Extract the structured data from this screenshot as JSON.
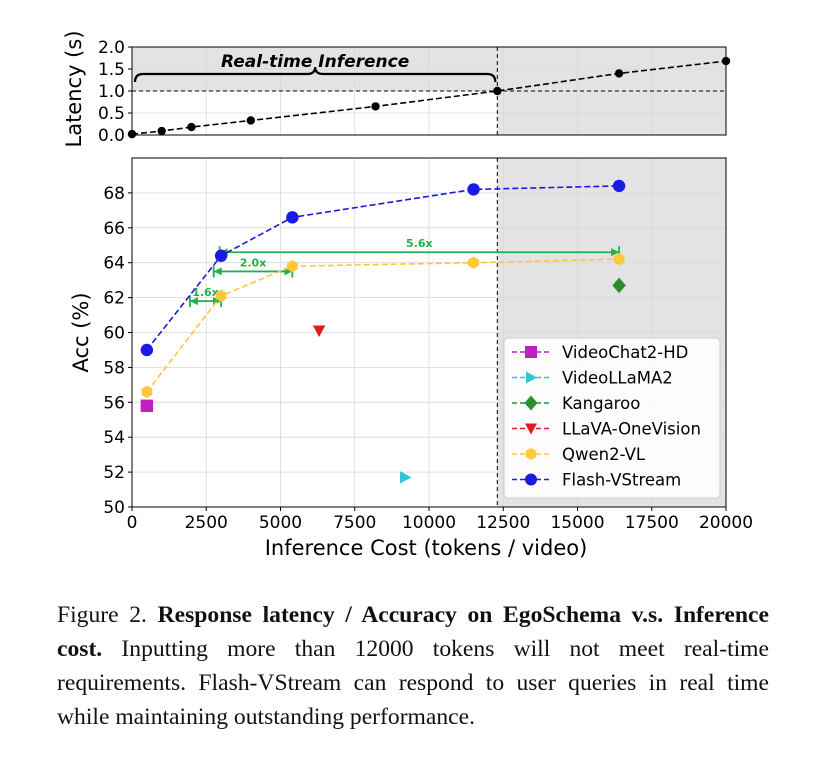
{
  "chart_data": [
    {
      "type": "line",
      "ylabel": "Latency (s)",
      "xlim": [
        0,
        20000
      ],
      "ylim": [
        0,
        2.0
      ],
      "yticks": [
        "0.0",
        "0.5",
        "1.0",
        "1.5",
        "2.0"
      ],
      "series": [
        {
          "x": [
            0,
            1000,
            2000,
            4000,
            8200,
            12300,
            16400,
            20000
          ],
          "y": [
            0.02,
            0.09,
            0.18,
            0.33,
            0.65,
            1.0,
            1.4,
            1.68
          ],
          "color": "#000000"
        }
      ],
      "threshold_y": 1.0,
      "threshold_x": 12300,
      "annotation": "Real-time Inference",
      "shaded_region": [
        12300,
        20000
      ],
      "grid": true
    },
    {
      "type": "scatter",
      "xlabel": "Inference Cost (tokens / video)",
      "ylabel": "Acc (%)",
      "xlim": [
        0,
        20000
      ],
      "ylim": [
        50,
        70
      ],
      "xticks": [
        "0",
        "2500",
        "5000",
        "7500",
        "10000",
        "12500",
        "15000",
        "17500",
        "20000"
      ],
      "yticks": [
        "50",
        "52",
        "54",
        "56",
        "58",
        "60",
        "62",
        "64",
        "66",
        "68"
      ],
      "threshold_x": 12300,
      "shaded_region": [
        12300,
        20000
      ],
      "legend_position": "lower-right",
      "grid": true,
      "series": [
        {
          "name": "VideoChat2-HD",
          "color": "#c020c0",
          "marker": "square",
          "x": [
            500
          ],
          "y": [
            55.8
          ]
        },
        {
          "name": "VideoLLaMA2",
          "color": "#30c8d0",
          "marker": "triangle-right",
          "x": [
            9200
          ],
          "y": [
            51.7
          ]
        },
        {
          "name": "Kangaroo",
          "color": "#2e8b2e",
          "marker": "diamond",
          "x": [
            16400
          ],
          "y": [
            62.7
          ]
        },
        {
          "name": "LLaVA-OneVision",
          "color": "#dd1c1c",
          "marker": "triangle-down",
          "x": [
            6300
          ],
          "y": [
            60.1
          ]
        },
        {
          "name": "Qwen2-VL",
          "color": "#ffc83c",
          "marker": "hexagon",
          "x": [
            500,
            3000,
            5400,
            11500,
            16400
          ],
          "y": [
            56.6,
            62.1,
            63.8,
            64.0,
            64.2
          ]
        },
        {
          "name": "Flash-VStream",
          "color": "#1a1ae6",
          "marker": "circle",
          "x": [
            500,
            3000,
            5400,
            11500,
            16400
          ],
          "y": [
            59.0,
            64.4,
            66.6,
            68.2,
            68.4
          ]
        }
      ],
      "arrows": [
        {
          "label": "1.6x",
          "x_from": 1950,
          "x_to": 3000,
          "y": 61.8
        },
        {
          "label": "2.0x",
          "x_from": 2750,
          "x_to": 5400,
          "y": 63.5
        },
        {
          "label": "5.6x",
          "x_from": 2950,
          "x_to": 16400,
          "y": 64.6
        }
      ]
    }
  ],
  "caption": {
    "label": "Figure 2.",
    "bold": "Response latency / Accuracy on EgoSchema v.s. Inference cost.",
    "text": "Inputting more than 12000 tokens will not meet real-time requirements. Flash-VStream can respond to user queries in real time while maintaining outstanding performance."
  }
}
